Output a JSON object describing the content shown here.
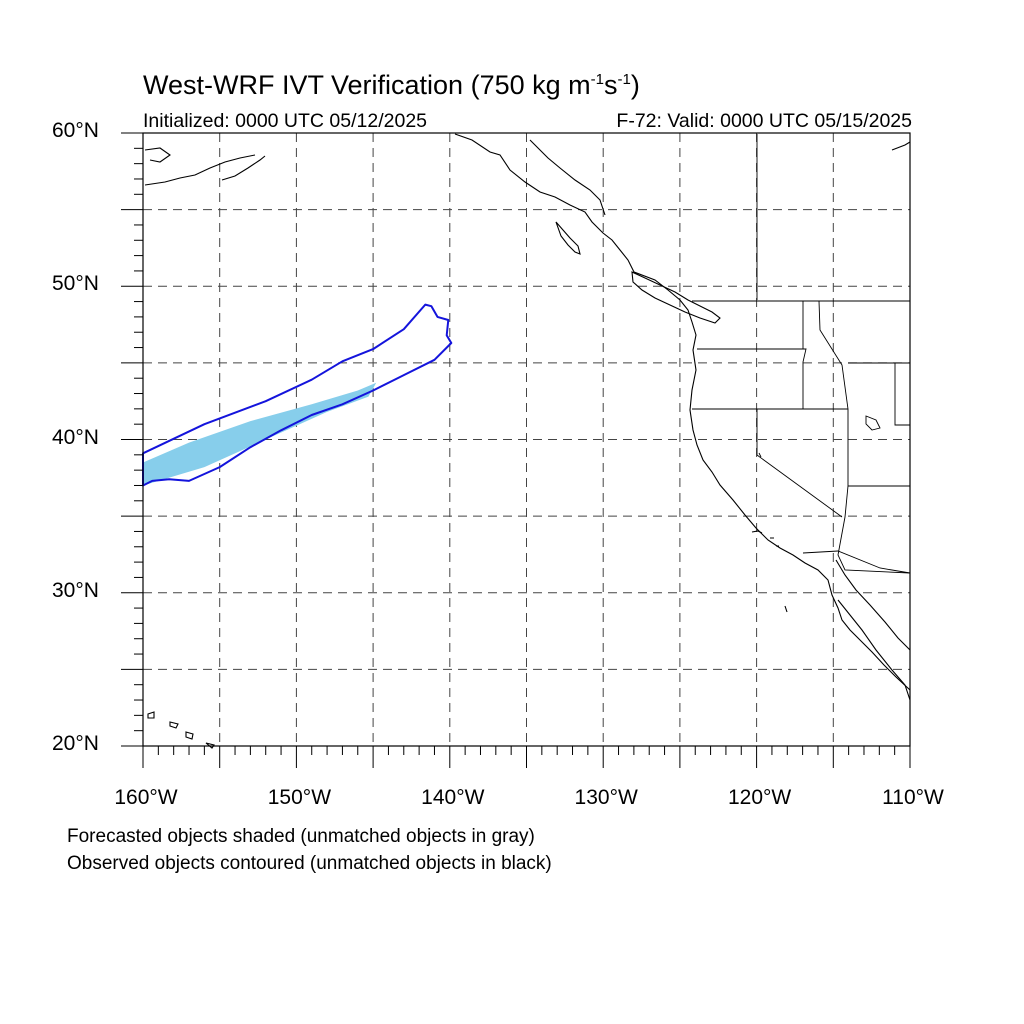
{
  "title_main": "West-WRF IVT Verification (750 kg m",
  "title_exp1": "-1",
  "title_mid": "s",
  "title_exp2": "-1",
  "title_end": ")",
  "initialized": "Initialized: 0000 UTC 05/12/2025",
  "valid": "F-72: Valid: 0000 UTC 05/15/2025",
  "notes": {
    "shaded": "Forecasted objects shaded (unmatched objects in gray)",
    "contoured": "Observed objects contoured (unmatched objects in black)"
  },
  "map": {
    "lon_range": [
      -160,
      -110
    ],
    "lat_range": [
      20,
      60
    ],
    "grid_lon_step": 5,
    "grid_lat_step": 5,
    "lat_labels": [
      "60°N",
      "50°N",
      "40°N",
      "30°N",
      "20°N"
    ],
    "lon_labels": [
      "160°W",
      "150°W",
      "140°W",
      "130°W",
      "120°W",
      "110°W"
    ],
    "colors": {
      "forecast_fill": "#87ceeb",
      "observed_contour": "#1414dc",
      "coastline": "#000000",
      "grid": "#444444"
    },
    "forecast_object": [
      [
        -160,
        38.5
      ],
      [
        -157,
        39.8
      ],
      [
        -153,
        41.2
      ],
      [
        -149,
        42.3
      ],
      [
        -146,
        43.2
      ],
      [
        -144.8,
        43.7
      ],
      [
        -145.3,
        42.8
      ],
      [
        -148,
        41.8
      ],
      [
        -152,
        40.0
      ],
      [
        -156,
        38.2
      ],
      [
        -160,
        37.0
      ]
    ],
    "observed_object": [
      [
        -160,
        39.1
      ],
      [
        -156,
        41.0
      ],
      [
        -152,
        42.5
      ],
      [
        -149,
        43.9
      ],
      [
        -147,
        45.1
      ],
      [
        -145,
        45.9
      ],
      [
        -143,
        47.2
      ],
      [
        -141.6,
        48.8
      ],
      [
        -141.2,
        48.7
      ],
      [
        -140.8,
        48.0
      ],
      [
        -140.1,
        47.8
      ],
      [
        -140.2,
        46.8
      ],
      [
        -139.9,
        46.3
      ],
      [
        -141,
        45.2
      ],
      [
        -143,
        44.2
      ],
      [
        -145,
        43.2
      ],
      [
        -147,
        42.3
      ],
      [
        -149,
        41.6
      ],
      [
        -151,
        40.6
      ],
      [
        -153,
        39.5
      ],
      [
        -155,
        38.2
      ],
      [
        -157,
        37.3
      ],
      [
        -158.3,
        37.4
      ],
      [
        -159.4,
        37.3
      ],
      [
        -160,
        37.0
      ]
    ]
  }
}
